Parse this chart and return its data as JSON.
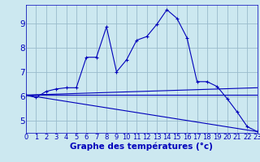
{
  "bg_color": "#cce8f0",
  "line_color": "#0000bb",
  "grid_color": "#99bbcc",
  "xlabel": "Graphe des températures (°c)",
  "xlabel_fontsize": 7.5,
  "tick_fontsize": 6.0,
  "ytick_fontsize": 7.5,
  "ylim": [
    4.5,
    9.75
  ],
  "xlim": [
    0,
    23
  ],
  "yticks": [
    5,
    6,
    7,
    8,
    9
  ],
  "xticks": [
    0,
    1,
    2,
    3,
    4,
    5,
    6,
    7,
    8,
    9,
    10,
    11,
    12,
    13,
    14,
    15,
    16,
    17,
    18,
    19,
    20,
    21,
    22,
    23
  ],
  "series1_x": [
    0,
    1,
    2,
    3,
    4,
    5,
    6,
    7,
    8,
    9,
    10,
    11,
    12,
    13,
    14,
    15,
    16,
    17,
    18,
    19,
    20,
    21,
    22,
    23
  ],
  "series1_y": [
    6.05,
    5.95,
    6.2,
    6.3,
    6.35,
    6.35,
    7.6,
    7.6,
    8.85,
    7.0,
    7.5,
    8.3,
    8.45,
    8.95,
    9.55,
    9.2,
    8.4,
    6.6,
    6.6,
    6.4,
    5.9,
    5.35,
    4.75,
    4.55
  ],
  "series2_x": [
    0,
    23
  ],
  "series2_y": [
    6.05,
    4.55
  ],
  "series3_x": [
    0,
    23
  ],
  "series3_y": [
    6.05,
    6.35
  ],
  "series4_x": [
    0,
    23
  ],
  "series4_y": [
    6.05,
    6.05
  ]
}
